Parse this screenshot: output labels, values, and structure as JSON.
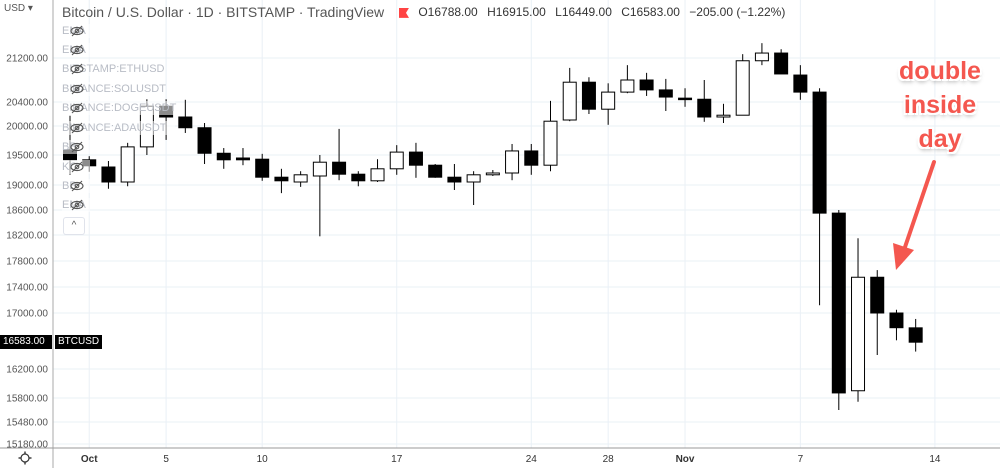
{
  "header": {
    "currency": "USD",
    "title": "Bitcoin / U.S. Dollar · 1D · BITSTAMP · TradingView",
    "open": "O16788.00",
    "high": "H16915.00",
    "low": "L16449.00",
    "close": "C16583.00",
    "change": "−205.00 (−1.22%)"
  },
  "legend": [
    {
      "label": "EMA"
    },
    {
      "label": "EMA"
    },
    {
      "label": "BITSTAMP:ETHUSD"
    },
    {
      "label": "BINANCE:SOLUSDT"
    },
    {
      "label": "BINANCE:DOGEUSDT"
    },
    {
      "label": "BINANCE:ADAUSDT"
    },
    {
      "label": "BB"
    },
    {
      "label": "KC"
    },
    {
      "label": "BB"
    },
    {
      "label": "EMA"
    }
  ],
  "collapse_label": "^",
  "price_tag": {
    "value": "16583.00",
    "symbol": "BTCUSD"
  },
  "annotation": {
    "lines": [
      "double",
      "inside",
      "day"
    ],
    "color": "#f4574f"
  },
  "colors": {
    "up": "#ffffff",
    "down": "#000000",
    "grid": "#eaf0f6"
  },
  "chart_data": {
    "type": "candlestick",
    "title": "Bitcoin / U.S. Dollar · 1D · BITSTAMP",
    "y_ticks": [
      "21200.00",
      "20400.00",
      "20000.00",
      "19500.00",
      "19000.00",
      "18600.00",
      "18200.00",
      "17800.00",
      "17400.00",
      "17000.00",
      "16200.00",
      "15800.00",
      "15480.00",
      "15180.00"
    ],
    "x_ticks": [
      {
        "label": "Oct",
        "day": 1
      },
      {
        "label": "5",
        "day": 5
      },
      {
        "label": "10",
        "day": 10
      },
      {
        "label": "17",
        "day": 17
      },
      {
        "label": "24",
        "day": 24
      },
      {
        "label": "28",
        "day": 28
      },
      {
        "label": "Nov",
        "day": 32
      },
      {
        "label": "7",
        "day": 38
      },
      {
        "label": "14",
        "day": 45
      }
    ],
    "candles": [
      {
        "d": "Sep 30",
        "o": 19590,
        "h": 20170,
        "l": 19170,
        "c": 19420
      },
      {
        "d": "Oct 1",
        "o": 19420,
        "h": 19480,
        "l": 19220,
        "c": 19320
      },
      {
        "d": "Oct 2",
        "o": 19300,
        "h": 19400,
        "l": 18940,
        "c": 19050
      },
      {
        "d": "Oct 3",
        "o": 19050,
        "h": 19710,
        "l": 18980,
        "c": 19640
      },
      {
        "d": "Oct 4",
        "o": 19640,
        "h": 20450,
        "l": 19500,
        "c": 20330
      },
      {
        "d": "Oct 5",
        "o": 20330,
        "h": 20450,
        "l": 19760,
        "c": 20150
      },
      {
        "d": "Oct 6",
        "o": 20150,
        "h": 20440,
        "l": 19880,
        "c": 19970
      },
      {
        "d": "Oct 7",
        "o": 19970,
        "h": 20050,
        "l": 19350,
        "c": 19530
      },
      {
        "d": "Oct 8",
        "o": 19530,
        "h": 19620,
        "l": 19270,
        "c": 19420
      },
      {
        "d": "Oct 9",
        "o": 19450,
        "h": 19620,
        "l": 19330,
        "c": 19420
      },
      {
        "d": "Oct 10",
        "o": 19430,
        "h": 19520,
        "l": 19070,
        "c": 19130
      },
      {
        "d": "Oct 11",
        "o": 19130,
        "h": 19270,
        "l": 18870,
        "c": 19070
      },
      {
        "d": "Oct 12",
        "o": 19050,
        "h": 19230,
        "l": 18970,
        "c": 19170
      },
      {
        "d": "Oct 13",
        "o": 19150,
        "h": 19500,
        "l": 18180,
        "c": 19380
      },
      {
        "d": "Oct 14",
        "o": 19380,
        "h": 19950,
        "l": 19080,
        "c": 19180
      },
      {
        "d": "Oct 15",
        "o": 19180,
        "h": 19230,
        "l": 18980,
        "c": 19070
      },
      {
        "d": "Oct 16",
        "o": 19070,
        "h": 19430,
        "l": 19050,
        "c": 19270
      },
      {
        "d": "Oct 17",
        "o": 19270,
        "h": 19670,
        "l": 19170,
        "c": 19550
      },
      {
        "d": "Oct 18",
        "o": 19550,
        "h": 19710,
        "l": 19120,
        "c": 19330
      },
      {
        "d": "Oct 19",
        "o": 19330,
        "h": 19350,
        "l": 19120,
        "c": 19130
      },
      {
        "d": "Oct 20",
        "o": 19130,
        "h": 19350,
        "l": 18920,
        "c": 19050
      },
      {
        "d": "Oct 21",
        "o": 19050,
        "h": 19230,
        "l": 18680,
        "c": 19170
      },
      {
        "d": "Oct 22",
        "o": 19170,
        "h": 19250,
        "l": 19150,
        "c": 19200
      },
      {
        "d": "Oct 23",
        "o": 19200,
        "h": 19690,
        "l": 19080,
        "c": 19570
      },
      {
        "d": "Oct 24",
        "o": 19570,
        "h": 19690,
        "l": 19170,
        "c": 19330
      },
      {
        "d": "Oct 25",
        "o": 19330,
        "h": 20420,
        "l": 19230,
        "c": 20080
      },
      {
        "d": "Oct 26",
        "o": 20100,
        "h": 21020,
        "l": 20080,
        "c": 20760
      },
      {
        "d": "Oct 27",
        "o": 20760,
        "h": 20850,
        "l": 20200,
        "c": 20280
      },
      {
        "d": "Oct 28",
        "o": 20280,
        "h": 20740,
        "l": 20020,
        "c": 20580
      },
      {
        "d": "Oct 29",
        "o": 20580,
        "h": 21070,
        "l": 20560,
        "c": 20800
      },
      {
        "d": "Oct 30",
        "o": 20800,
        "h": 20930,
        "l": 20510,
        "c": 20620
      },
      {
        "d": "Oct 31",
        "o": 20620,
        "h": 20820,
        "l": 20250,
        "c": 20490
      },
      {
        "d": "Nov 1",
        "o": 20470,
        "h": 20650,
        "l": 20320,
        "c": 20450
      },
      {
        "d": "Nov 2",
        "o": 20450,
        "h": 20800,
        "l": 20070,
        "c": 20150
      },
      {
        "d": "Nov 3",
        "o": 20150,
        "h": 20370,
        "l": 20050,
        "c": 20180
      },
      {
        "d": "Nov 4",
        "o": 20180,
        "h": 21270,
        "l": 20180,
        "c": 21150
      },
      {
        "d": "Nov 5",
        "o": 21150,
        "h": 21470,
        "l": 21070,
        "c": 21290
      },
      {
        "d": "Nov 6",
        "o": 21290,
        "h": 21360,
        "l": 20910,
        "c": 20910
      },
      {
        "d": "Nov 7",
        "o": 20890,
        "h": 21070,
        "l": 20440,
        "c": 20580
      },
      {
        "d": "Nov 8",
        "o": 20580,
        "h": 20650,
        "l": 17120,
        "c": 18550
      },
      {
        "d": "Nov 9",
        "o": 18550,
        "h": 18600,
        "l": 15640,
        "c": 15870
      },
      {
        "d": "Nov 10",
        "o": 15900,
        "h": 18150,
        "l": 15750,
        "c": 17550
      },
      {
        "d": "Nov 11",
        "o": 17550,
        "h": 17660,
        "l": 16400,
        "c": 17000
      },
      {
        "d": "Nov 12",
        "o": 17000,
        "h": 17050,
        "l": 16610,
        "c": 16790
      },
      {
        "d": "Nov 13",
        "o": 16788,
        "h": 16915,
        "l": 16449,
        "c": 16583
      }
    ]
  }
}
